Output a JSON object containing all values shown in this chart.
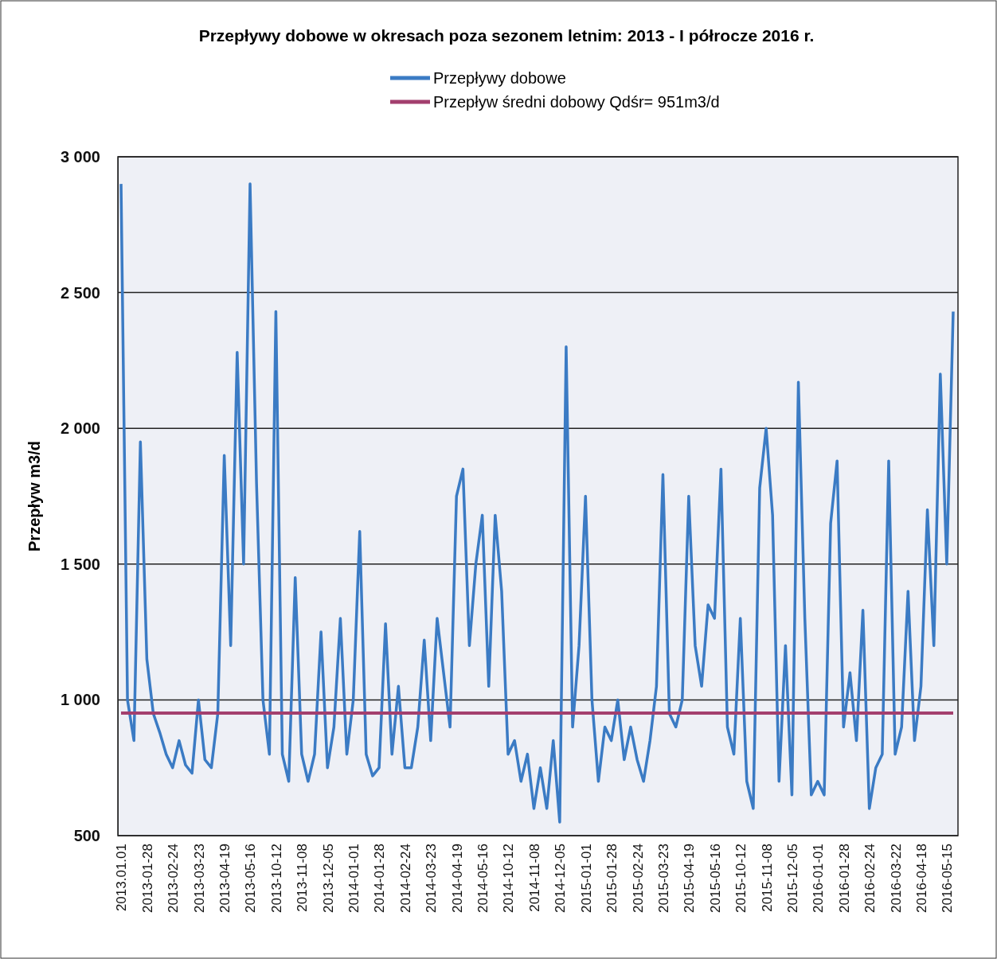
{
  "chart_data": {
    "type": "line",
    "title": "Przepływy dobowe w okresach poza sezonem letnim: 2013 - I półrocze 2016 r.",
    "ylabel": "Przepływ m3/d",
    "categories": [
      "2013.01.01",
      null,
      null,
      null,
      "2013-01-28",
      null,
      null,
      null,
      "2013-02-24",
      null,
      null,
      null,
      "2013-03-23",
      null,
      null,
      null,
      "2013-04-19",
      null,
      null,
      null,
      "2013-05-16",
      null,
      null,
      null,
      "2013-10-12",
      null,
      null,
      null,
      "2013-11-08",
      null,
      null,
      null,
      "2013-12-05",
      null,
      null,
      null,
      "2014-01-01",
      null,
      null,
      null,
      "2014-01-28",
      null,
      null,
      null,
      "2014-02-24",
      null,
      null,
      null,
      "2014-03-23",
      null,
      null,
      null,
      "2014-04-19",
      null,
      null,
      null,
      "2014-05-16",
      null,
      null,
      null,
      "2014-10-12",
      null,
      null,
      null,
      "2014-11-08",
      null,
      null,
      null,
      "2014-12-05",
      null,
      null,
      null,
      "2015-01-01",
      null,
      null,
      null,
      "2015-01-28",
      null,
      null,
      null,
      "2015-02-24",
      null,
      null,
      null,
      "2015-03-23",
      null,
      null,
      null,
      "2015-04-19",
      null,
      null,
      null,
      "2015-05-16",
      null,
      null,
      null,
      "2015-10-12",
      null,
      null,
      null,
      "2015-11-08",
      null,
      null,
      null,
      "2015-12-05",
      null,
      null,
      null,
      "2016-01-01",
      null,
      null,
      null,
      "2016-01-28",
      null,
      null,
      null,
      "2016-02-24",
      null,
      null,
      null,
      "2016-03-22",
      null,
      null,
      null,
      "2016-04-18",
      null,
      null,
      null,
      "2016-05-15",
      null
    ],
    "series": [
      {
        "name": "Przepływy dobowe",
        "color": "#3b7bc4",
        "values": [
          2900,
          1000,
          850,
          1950,
          1150,
          950,
          880,
          800,
          750,
          850,
          760,
          730,
          1000,
          780,
          750,
          950,
          1900,
          1200,
          2280,
          1500,
          2900,
          1800,
          1000,
          800,
          2430,
          800,
          700,
          1450,
          800,
          700,
          800,
          1250,
          750,
          900,
          1300,
          800,
          1000,
          1620,
          800,
          720,
          750,
          1280,
          800,
          1050,
          750,
          750,
          900,
          1220,
          850,
          1300,
          1100,
          900,
          1750,
          1850,
          1200,
          1500,
          1680,
          1050,
          1680,
          1400,
          800,
          850,
          700,
          800,
          600,
          750,
          600,
          850,
          550,
          2300,
          900,
          1200,
          1750,
          1000,
          700,
          900,
          850,
          1000,
          780,
          900,
          780,
          700,
          850,
          1050,
          1830,
          950,
          900,
          1000,
          1750,
          1200,
          1050,
          1350,
          1300,
          1850,
          900,
          800,
          1300,
          700,
          600,
          1780,
          2000,
          1680,
          700,
          1200,
          650,
          2170,
          1300,
          650,
          700,
          650,
          1650,
          1880,
          900,
          1100,
          850,
          1330,
          600,
          750,
          800,
          1880,
          800,
          900,
          1400,
          850,
          1050,
          1700,
          1200,
          2200,
          1500,
          2430
        ]
      },
      {
        "name": "Przepływ średni dobowy Qdśr= 951m3/d",
        "color": "#a33f6e",
        "values": [
          951,
          951,
          951,
          951,
          951,
          951,
          951,
          951,
          951,
          951,
          951,
          951,
          951,
          951,
          951,
          951,
          951,
          951,
          951,
          951,
          951,
          951,
          951,
          951,
          951,
          951,
          951,
          951,
          951,
          951,
          951,
          951,
          951,
          951,
          951,
          951,
          951,
          951,
          951,
          951,
          951,
          951,
          951,
          951,
          951,
          951,
          951,
          951,
          951,
          951,
          951,
          951,
          951,
          951,
          951,
          951,
          951,
          951,
          951,
          951,
          951,
          951,
          951,
          951,
          951,
          951,
          951,
          951,
          951,
          951,
          951,
          951,
          951,
          951,
          951,
          951,
          951,
          951,
          951,
          951,
          951,
          951,
          951,
          951,
          951,
          951,
          951,
          951,
          951,
          951,
          951,
          951,
          951,
          951,
          951,
          951,
          951,
          951,
          951,
          951,
          951,
          951,
          951,
          951,
          951,
          951,
          951,
          951,
          951,
          951,
          951,
          951,
          951,
          951,
          951,
          951,
          951,
          951,
          951,
          951,
          951,
          951,
          951,
          951,
          951,
          951,
          951,
          951,
          951,
          951
        ]
      }
    ],
    "ylim": [
      500,
      3000
    ],
    "yticks": [
      500,
      {
        "value": 1000,
        "label": "1 000"
      },
      {
        "value": 1500,
        "label": "1 500"
      },
      {
        "value": 2000,
        "label": "2 000"
      },
      {
        "value": 2500,
        "label": "2 500"
      },
      {
        "value": 3000,
        "label": "3 000"
      }
    ],
    "grid": "y",
    "legend": "top",
    "line_style": "solid",
    "marker": "none"
  }
}
